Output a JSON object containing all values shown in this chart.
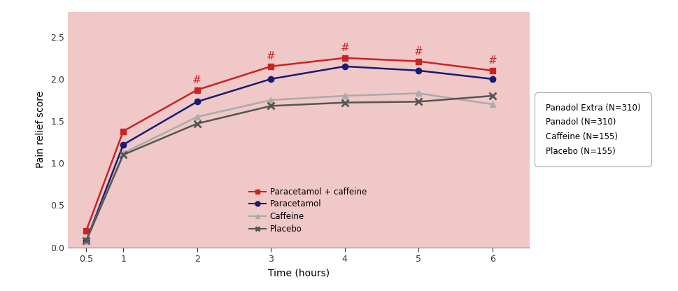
{
  "time": [
    0.5,
    1,
    2,
    3,
    4,
    5,
    6
  ],
  "paracetamol_caffeine": [
    0.2,
    1.38,
    1.87,
    2.15,
    2.25,
    2.21,
    2.1
  ],
  "paracetamol": [
    0.08,
    1.22,
    1.73,
    2.0,
    2.15,
    2.1,
    2.0
  ],
  "caffeine": [
    0.08,
    1.12,
    1.55,
    1.75,
    1.8,
    1.83,
    1.7
  ],
  "placebo": [
    0.08,
    1.1,
    1.47,
    1.68,
    1.72,
    1.73,
    1.8
  ],
  "hash_times": [
    2,
    3,
    4,
    5,
    6
  ],
  "colors": {
    "paracetamol_caffeine": "#cc2222",
    "paracetamol": "#1a1a72",
    "caffeine": "#aaaaaa",
    "placebo": "#555555"
  },
  "bg_color": "#f0c8c8",
  "xlabel": "Time (hours)",
  "ylabel": "Pain relief score",
  "ylim": [
    0,
    2.8
  ],
  "xlim": [
    0.25,
    6.5
  ],
  "yticks": [
    0,
    0.5,
    1.0,
    1.5,
    2.0,
    2.5
  ],
  "xtick_vals": [
    0.5,
    1,
    2,
    3,
    4,
    5,
    6
  ],
  "xtick_labels": [
    "0.5",
    "1",
    "2",
    "3",
    "4",
    "5",
    "6"
  ],
  "legend_inside_labels": [
    "Paracetamol + caffeine",
    "Paracetamol",
    "Caffeine",
    "Placebo"
  ],
  "legend_outside_labels": [
    "Panadol Extra (N=310)",
    "Panadol (N=310)",
    "Caffeine (N=155)",
    "Placebo (N=155)"
  ],
  "hash_label_color": "#cc2222",
  "hash_label_fontsize": 11,
  "linewidth": 1.8,
  "markersize": 6
}
